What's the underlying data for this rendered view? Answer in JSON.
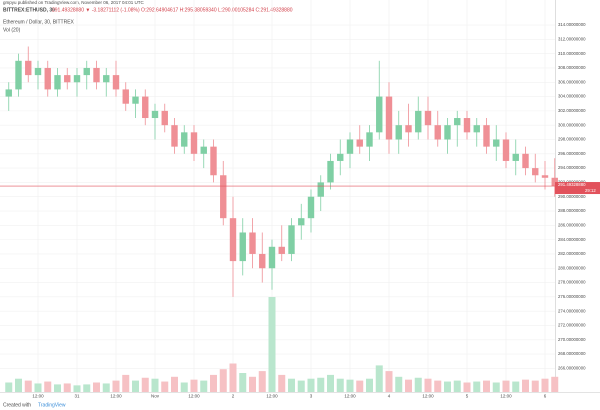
{
  "header": {
    "publisher": "gmpyu published on TradingView.com, November 06, 2017 04:01 UTC",
    "symbol": "BITTREX:ETHUSD, 30",
    "quote": "291.49328880 ▼ -3.18271112 (-1.08%) O:292.64904617 H:295.38059340 L:290.00105284 C:291.49328880",
    "legend_title": "Ethereum / Dollar, 30, BITTREX",
    "volume_title": "Vol (20)",
    "last_price": "291.49328880",
    "countdown": "29:12"
  },
  "footer": {
    "created": "Created with",
    "brand": "TradingView"
  },
  "chart_data": {
    "type": "candlestick",
    "categories": [
      null,
      null,
      null,
      "12:00",
      null,
      null,
      null,
      "31",
      null,
      null,
      null,
      "12:00",
      null,
      null,
      null,
      "Nov",
      null,
      null,
      null,
      "12:00",
      null,
      null,
      null,
      "2",
      null,
      null,
      null,
      "12:00",
      null,
      null,
      null,
      "3",
      null,
      null,
      null,
      "12:00",
      null,
      null,
      null,
      "4",
      null,
      null,
      null,
      "12:00",
      null,
      null,
      null,
      "5",
      null,
      null,
      null,
      "12:00",
      null,
      null,
      null,
      "6",
      null
    ],
    "open": [
      304,
      305,
      309,
      307,
      308,
      305,
      307,
      306,
      307,
      308,
      306,
      307,
      305,
      303,
      304,
      301,
      302,
      300,
      297,
      299,
      296,
      297,
      293,
      287,
      281,
      285,
      282,
      280,
      283,
      282,
      286,
      287,
      290,
      292,
      295,
      296,
      298,
      297,
      299,
      304,
      298,
      300,
      299,
      302,
      300,
      298,
      300,
      301,
      299,
      300,
      297,
      298,
      295,
      296,
      294,
      293,
      292.64904617
    ],
    "high": [
      306,
      310,
      311,
      309,
      309,
      308,
      308,
      308,
      309,
      309,
      308,
      309,
      306,
      305,
      305,
      303,
      303,
      301,
      300,
      300,
      298,
      298,
      295,
      290,
      287,
      287,
      285,
      284,
      286,
      287,
      289,
      291,
      293,
      296,
      298,
      299,
      300,
      300,
      309,
      306,
      302,
      303,
      304,
      304,
      302,
      301,
      302,
      302,
      301,
      301,
      300,
      299,
      298,
      297,
      296,
      295,
      295.3805934
    ],
    "low": [
      302,
      304,
      306,
      305,
      304,
      304,
      305,
      304,
      305,
      305,
      304,
      304,
      302,
      301,
      300,
      298,
      299,
      296,
      296,
      295,
      294,
      292,
      286,
      276,
      279,
      280,
      278,
      277,
      281,
      281,
      284,
      285,
      288,
      291,
      293,
      294,
      296,
      295,
      298,
      296,
      296,
      297,
      298,
      298,
      297,
      296,
      297,
      298,
      297,
      296,
      295,
      294,
      293,
      293,
      292,
      291,
      290.00105284
    ],
    "close": [
      305,
      309,
      307,
      308,
      305,
      307,
      306,
      307,
      308,
      306,
      307,
      305,
      303,
      304,
      301,
      302,
      300,
      297,
      299,
      296,
      297,
      293,
      287,
      281,
      285,
      282,
      280,
      283,
      282,
      286,
      287,
      290,
      292,
      295,
      296,
      298,
      297,
      299,
      304,
      298,
      300,
      299,
      302,
      300,
      298,
      300,
      301,
      299,
      300,
      297,
      298,
      295,
      296,
      294,
      293,
      292.64904617,
      291.4932888
    ],
    "volume": [
      10,
      14,
      12,
      9,
      11,
      8,
      9,
      7,
      8,
      10,
      9,
      12,
      18,
      12,
      15,
      14,
      11,
      16,
      10,
      13,
      12,
      18,
      24,
      30,
      20,
      16,
      22,
      100,
      18,
      14,
      12,
      14,
      15,
      18,
      14,
      13,
      12,
      14,
      28,
      22,
      16,
      13,
      15,
      14,
      12,
      11,
      12,
      10,
      11,
      12,
      10,
      12,
      11,
      13,
      12,
      14,
      16
    ],
    "ylim": [
      262.7,
      317.5
    ],
    "vlim": [
      0,
      100
    ],
    "yticks": [
      {
        "value": 266,
        "label": "266.00000000"
      },
      {
        "value": 268,
        "label": "268.00000000"
      },
      {
        "value": 270,
        "label": "270.00000000"
      },
      {
        "value": 272,
        "label": "272.00000000"
      },
      {
        "value": 274,
        "label": "274.00000000"
      },
      {
        "value": 276,
        "label": "276.00000000"
      },
      {
        "value": 278,
        "label": "278.00000000"
      },
      {
        "value": 280,
        "label": "280.00000000"
      },
      {
        "value": 282,
        "label": "282.00000000"
      },
      {
        "value": 284,
        "label": "284.00000000"
      },
      {
        "value": 286,
        "label": "286.00000000"
      },
      {
        "value": 288,
        "label": "288.00000000"
      },
      {
        "value": 290,
        "label": "290.00000000"
      },
      {
        "value": 292,
        "label": "292.00000000"
      },
      {
        "value": 294,
        "label": "294.00000000"
      },
      {
        "value": 296,
        "label": "296.00000000"
      },
      {
        "value": 298,
        "label": "298.00000000"
      },
      {
        "value": 300,
        "label": "300.00000000"
      },
      {
        "value": 302,
        "label": "302.00000000"
      },
      {
        "value": 304,
        "label": "304.00000000"
      },
      {
        "value": 306,
        "label": "306.00000000"
      },
      {
        "value": 308,
        "label": "308.00000000"
      },
      {
        "value": 310,
        "label": "310.00000000"
      },
      {
        "value": 312,
        "label": "312.00000000"
      },
      {
        "value": 314,
        "label": "314.00000000"
      }
    ],
    "up_color": "#7fcfa4",
    "down_color": "#ef8f95",
    "up_volume_color": "#b9e6cd",
    "down_volume_color": "#f6c1c4",
    "last_color": "#e2525c",
    "grid": true
  }
}
